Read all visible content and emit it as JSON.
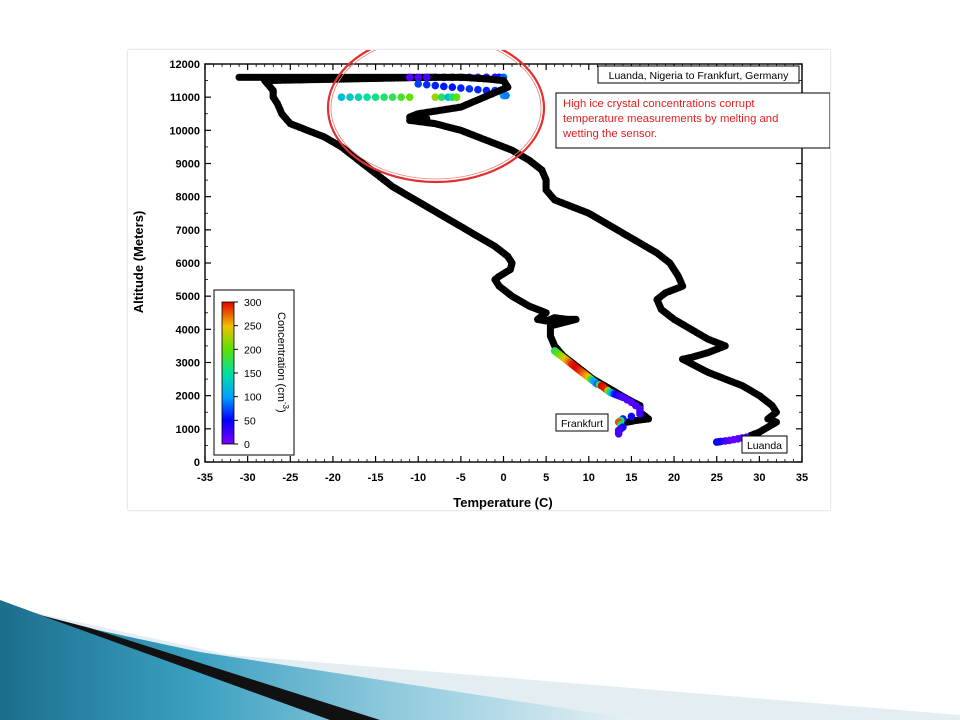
{
  "chart_data": {
    "type": "scatter",
    "title": "Luanda, Nigeria to Frankfurt, Germany",
    "xlabel": "Temperature (C)",
    "ylabel": "Altitude (Meters)",
    "xlim": [
      -35,
      35
    ],
    "ylim": [
      0,
      12000
    ],
    "xticks": [
      -35,
      -30,
      -25,
      -20,
      -15,
      -10,
      -5,
      0,
      5,
      10,
      15,
      20,
      25,
      30,
      35
    ],
    "yticks": [
      0,
      1000,
      2000,
      3000,
      4000,
      5000,
      6000,
      7000,
      8000,
      9000,
      10000,
      11000,
      12000
    ],
    "grid": false,
    "colorbar": {
      "label": "Concentration (cm",
      "label_exponent": "-3",
      "label_close": ")",
      "ticks": [
        0,
        50,
        100,
        150,
        200,
        250,
        300
      ],
      "range": [
        0,
        300
      ],
      "placement": "lower-left"
    },
    "annotations": {
      "note": "High ice crystal concentrations corrupt temperature measurements by melting and wetting the sensor.",
      "label_frankfurt": "Frankfurt",
      "label_luanda": "Luanda",
      "note_color": "#e02020",
      "circle_color": "#e0302f"
    },
    "series": [
      {
        "role": "descent-to-frankfurt",
        "points": [
          [
            -31,
            11600
          ],
          [
            -30,
            11600
          ],
          [
            -25,
            11600
          ],
          [
            -20,
            11600
          ],
          [
            -15,
            11600
          ],
          [
            -10,
            11600
          ],
          [
            -8,
            11600
          ],
          [
            -28,
            11500
          ],
          [
            -27,
            11200
          ],
          [
            -27,
            11000
          ],
          [
            -26.5,
            10800
          ],
          [
            -26,
            10500
          ],
          [
            -25,
            10200
          ],
          [
            -23,
            10000
          ],
          [
            -21,
            9800
          ],
          [
            -19,
            9500
          ],
          [
            -17,
            9100
          ],
          [
            -15.5,
            8800
          ],
          [
            -14.5,
            8600
          ],
          [
            -13,
            8300
          ],
          [
            -11,
            8000
          ],
          [
            -9,
            7700
          ],
          [
            -7,
            7400
          ],
          [
            -5,
            7100
          ],
          [
            -3,
            6800
          ],
          [
            -1,
            6500
          ],
          [
            0.5,
            6200
          ],
          [
            1,
            6000
          ],
          [
            0.8,
            5800
          ],
          [
            -0.5,
            5600
          ],
          [
            -1,
            5500
          ],
          [
            -0.5,
            5300
          ],
          [
            1,
            5000
          ],
          [
            3,
            4700
          ],
          [
            5,
            4500
          ],
          [
            4,
            4300
          ],
          [
            5,
            4250
          ],
          [
            6,
            4350
          ],
          [
            7.5,
            4300
          ],
          [
            8.5,
            4300
          ],
          [
            5.5,
            4100
          ],
          [
            5.5,
            3800
          ],
          [
            6,
            3500
          ],
          [
            7,
            3200
          ],
          [
            8.5,
            2900
          ],
          [
            10.5,
            2500
          ],
          [
            12.5,
            2200
          ],
          [
            14.5,
            1900
          ],
          [
            16,
            1700
          ],
          [
            16,
            1500
          ],
          [
            17,
            1300
          ],
          [
            15.5,
            1250
          ],
          [
            14.5,
            1200
          ]
        ]
      },
      {
        "role": "cruise-colored",
        "points": [
          [
            -11,
            11600,
            15
          ],
          [
            -9,
            11600,
            20
          ],
          [
            -7,
            11600,
            10
          ],
          [
            -5,
            11600,
            25
          ],
          [
            -3,
            11600,
            15
          ],
          [
            -1,
            11600,
            30
          ],
          [
            0,
            11600,
            80
          ],
          [
            -10,
            11400,
            70
          ],
          [
            -8,
            11350,
            60
          ],
          [
            -6,
            11300,
            55
          ],
          [
            -4,
            11250,
            65
          ],
          [
            -2,
            11200,
            60
          ],
          [
            0,
            11200,
            75
          ],
          [
            -19,
            11000,
            120
          ],
          [
            -17,
            11000,
            140
          ],
          [
            -15,
            11000,
            160
          ],
          [
            -13,
            11000,
            175
          ],
          [
            -11,
            11000,
            200
          ],
          [
            -8,
            11000,
            220
          ],
          [
            -6.5,
            11000,
            120
          ],
          [
            -5.5,
            11000,
            200
          ],
          [
            0,
            11050,
            100
          ],
          [
            0.3,
            11050,
            90
          ]
        ]
      },
      {
        "role": "descent-colored",
        "points": [
          [
            6,
            3350,
            170
          ],
          [
            6.5,
            3250,
            200
          ],
          [
            7,
            3150,
            230
          ],
          [
            7.5,
            3050,
            260
          ],
          [
            8,
            2950,
            290
          ],
          [
            8.5,
            2850,
            300
          ],
          [
            9,
            2750,
            290
          ],
          [
            9.5,
            2650,
            270
          ],
          [
            10,
            2550,
            250
          ],
          [
            10.5,
            2450,
            120
          ],
          [
            11,
            2350,
            80
          ],
          [
            11.5,
            2300,
            300
          ],
          [
            12,
            2200,
            290
          ],
          [
            12.5,
            2100,
            150
          ],
          [
            13,
            2050,
            60
          ],
          [
            13.5,
            2000,
            30
          ],
          [
            14,
            1950,
            20
          ],
          [
            15,
            1800,
            15
          ],
          [
            16,
            1600,
            20
          ],
          [
            16,
            1450,
            25
          ],
          [
            14,
            1300,
            60
          ],
          [
            13.5,
            1200,
            280
          ],
          [
            14,
            1050,
            40
          ],
          [
            13.5,
            950,
            25
          ],
          [
            13.5,
            850,
            20
          ]
        ]
      },
      {
        "role": "ascent-from-luanda",
        "points": [
          [
            -8,
            11600
          ],
          [
            -5,
            11600
          ],
          [
            -2,
            11550
          ],
          [
            0,
            11500
          ],
          [
            0.5,
            11300
          ],
          [
            -5,
            10700
          ],
          [
            -10,
            10500
          ],
          [
            -11,
            10400
          ],
          [
            -9,
            10350
          ],
          [
            -11,
            10300
          ],
          [
            -8,
            10200
          ],
          [
            -5,
            10000
          ],
          [
            -2,
            9700
          ],
          [
            1,
            9400
          ],
          [
            3,
            9100
          ],
          [
            4.5,
            8800
          ],
          [
            5,
            8500
          ],
          [
            5,
            8200
          ],
          [
            6,
            7900
          ],
          [
            8,
            7700
          ],
          [
            10,
            7500
          ],
          [
            12,
            7200
          ],
          [
            14,
            6900
          ],
          [
            16,
            6600
          ],
          [
            18,
            6300
          ],
          [
            19.5,
            6000
          ],
          [
            20.5,
            5600
          ],
          [
            21,
            5300
          ],
          [
            19,
            5100
          ],
          [
            18,
            4900
          ],
          [
            18.5,
            4600
          ],
          [
            20,
            4300
          ],
          [
            22,
            4000
          ],
          [
            24,
            3700
          ],
          [
            26,
            3500
          ],
          [
            24,
            3300
          ],
          [
            22,
            3150
          ],
          [
            21,
            3100
          ],
          [
            22.5,
            2900
          ],
          [
            24,
            2700
          ],
          [
            26,
            2500
          ],
          [
            28,
            2300
          ],
          [
            30,
            2000
          ],
          [
            31.5,
            1700
          ],
          [
            32,
            1500
          ],
          [
            31,
            1300
          ],
          [
            32,
            1200
          ],
          [
            30,
            900
          ],
          [
            29,
            800
          ]
        ]
      },
      {
        "role": "ascent-colored",
        "points": [
          [
            28.5,
            750,
            20
          ],
          [
            27.5,
            700,
            15
          ],
          [
            26.5,
            650,
            10
          ],
          [
            25.5,
            620,
            30
          ],
          [
            25,
            600,
            45
          ]
        ]
      }
    ]
  }
}
